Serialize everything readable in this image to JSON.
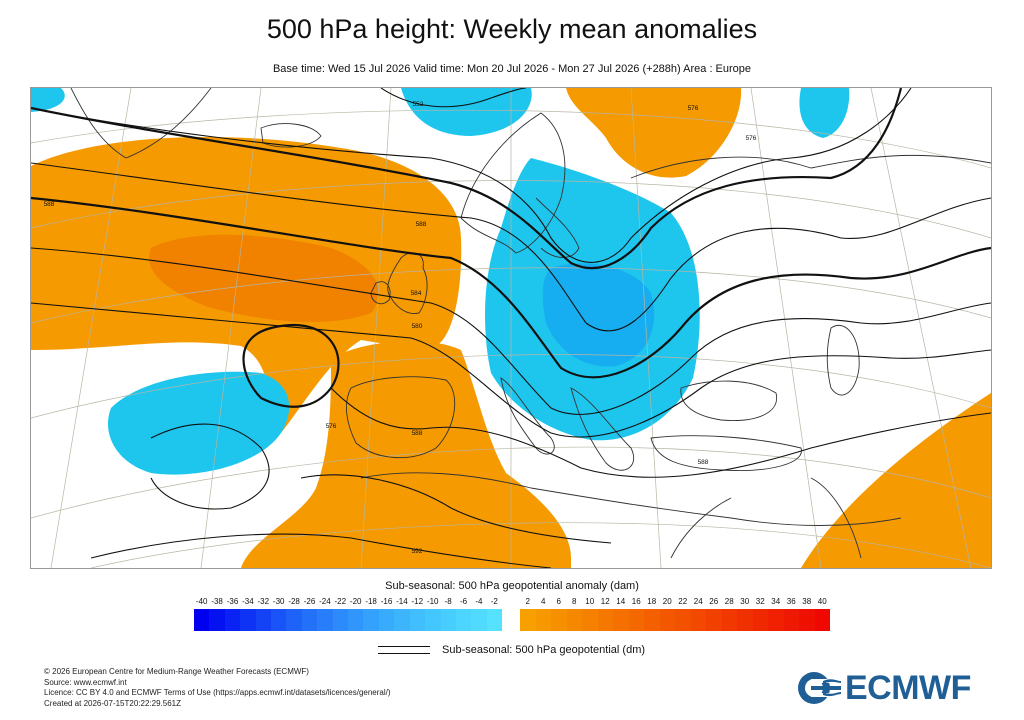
{
  "title": "500 hPa height: Weekly mean anomalies",
  "subtitle": "Base time: Wed 15 Jul 2026 Valid time: Mon 20 Jul 2026 - Mon 27 Jul 2026 (+288h) Area : Europe",
  "map": {
    "contour_labels": [
      {
        "name": "contour-label-552",
        "text": "552"
      },
      {
        "name": "contour-label-576-north",
        "text": "576"
      },
      {
        "name": "contour-label-576-east",
        "text": "576"
      },
      {
        "name": "contour-label-588-west",
        "text": "588"
      },
      {
        "name": "contour-label-588-south",
        "text": "588"
      },
      {
        "name": "contour-label-584",
        "text": "584"
      },
      {
        "name": "contour-label-580",
        "text": "580"
      },
      {
        "name": "contour-label-576-mid",
        "text": "576"
      },
      {
        "name": "contour-label-588-iberia",
        "text": "588"
      },
      {
        "name": "contour-label-588-east",
        "text": "588"
      },
      {
        "name": "contour-label-592",
        "text": "592"
      }
    ],
    "colors": {
      "positive_anomaly": "#f59a00",
      "strong_positive_anomaly": "#f08200",
      "negative_anomaly": "#1ec6ee",
      "strong_negative_anomaly": "#16aef0",
      "coastline": "#333333",
      "contour": "#111111",
      "graticule": "#b9b4a4"
    }
  },
  "legend": {
    "title": "Sub-seasonal: 500 hPa geopotential anomaly (dam)",
    "negative_ticks": [
      "-40",
      "-38",
      "-36",
      "-34",
      "-32",
      "-30",
      "-28",
      "-26",
      "-24",
      "-22",
      "-20",
      "-18",
      "-16",
      "-14",
      "-12",
      "-10",
      "-8",
      "-6",
      "-4",
      "-2"
    ],
    "positive_ticks": [
      "2",
      "4",
      "6",
      "8",
      "10",
      "12",
      "14",
      "16",
      "18",
      "20",
      "22",
      "24",
      "26",
      "28",
      "30",
      "32",
      "34",
      "36",
      "38",
      "40"
    ],
    "negative_colors": [
      "#0000f0",
      "#0412f2",
      "#0a23f4",
      "#0f33f5",
      "#1443f6",
      "#1a53f7",
      "#1f62f8",
      "#2370f9",
      "#287dfa",
      "#2c8afb",
      "#3096fc",
      "#34a1fc",
      "#38abfd",
      "#3cb5fd",
      "#40befd",
      "#44c6fe",
      "#48cefe",
      "#4cd5fe",
      "#50dbfe",
      "#55e2fe"
    ],
    "positive_colors": [
      "#f7a000",
      "#f79800",
      "#f69000",
      "#f68800",
      "#f68000",
      "#f57800",
      "#f57000",
      "#f46800",
      "#f46000",
      "#f35800",
      "#f35000",
      "#f24800",
      "#f24000",
      "#f13800",
      "#f13000",
      "#f02800",
      "#f02000",
      "#ef1800",
      "#ef1000",
      "#ee0800"
    ],
    "contour_label": "Sub-seasonal: 500 hPa geopotential (dm)"
  },
  "footer": {
    "copyright": "© 2026 European Centre for Medium-Range Weather Forecasts (ECMWF)",
    "source": "Source: www.ecmwf.int",
    "licence": "Licence: CC BY 4.0 and ECMWF Terms of Use (https://apps.ecmwf.int/datasets/licences/general/)",
    "created": "Created at 2026-07-15T20:22:29.561Z"
  },
  "logo": {
    "text": "ECMWF"
  }
}
